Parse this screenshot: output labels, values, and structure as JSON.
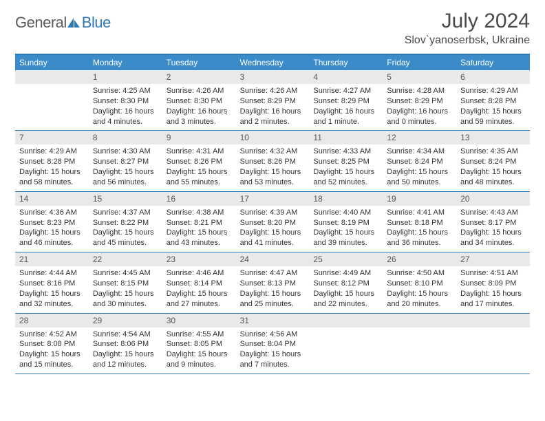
{
  "logo": {
    "text1": "General",
    "text2": "Blue",
    "icon_color": "#2e79b8"
  },
  "header": {
    "month": "July 2024",
    "location": "Slov`yanoserbsk, Ukraine"
  },
  "colors": {
    "header_bg": "#3b8bc9",
    "border": "#2e79b8",
    "daynum_bg": "#e9e9e9",
    "text": "#333333"
  },
  "layout": {
    "cols": 7,
    "rows": 5
  },
  "weekdays": [
    "Sunday",
    "Monday",
    "Tuesday",
    "Wednesday",
    "Thursday",
    "Friday",
    "Saturday"
  ],
  "days": [
    {
      "num": "",
      "sunrise": "",
      "sunset": "",
      "daylight": ""
    },
    {
      "num": "1",
      "sunrise": "4:25 AM",
      "sunset": "8:30 PM",
      "daylight": "16 hours and 4 minutes."
    },
    {
      "num": "2",
      "sunrise": "4:26 AM",
      "sunset": "8:30 PM",
      "daylight": "16 hours and 3 minutes."
    },
    {
      "num": "3",
      "sunrise": "4:26 AM",
      "sunset": "8:29 PM",
      "daylight": "16 hours and 2 minutes."
    },
    {
      "num": "4",
      "sunrise": "4:27 AM",
      "sunset": "8:29 PM",
      "daylight": "16 hours and 1 minute."
    },
    {
      "num": "5",
      "sunrise": "4:28 AM",
      "sunset": "8:29 PM",
      "daylight": "16 hours and 0 minutes."
    },
    {
      "num": "6",
      "sunrise": "4:29 AM",
      "sunset": "8:28 PM",
      "daylight": "15 hours and 59 minutes."
    },
    {
      "num": "7",
      "sunrise": "4:29 AM",
      "sunset": "8:28 PM",
      "daylight": "15 hours and 58 minutes."
    },
    {
      "num": "8",
      "sunrise": "4:30 AM",
      "sunset": "8:27 PM",
      "daylight": "15 hours and 56 minutes."
    },
    {
      "num": "9",
      "sunrise": "4:31 AM",
      "sunset": "8:26 PM",
      "daylight": "15 hours and 55 minutes."
    },
    {
      "num": "10",
      "sunrise": "4:32 AM",
      "sunset": "8:26 PM",
      "daylight": "15 hours and 53 minutes."
    },
    {
      "num": "11",
      "sunrise": "4:33 AM",
      "sunset": "8:25 PM",
      "daylight": "15 hours and 52 minutes."
    },
    {
      "num": "12",
      "sunrise": "4:34 AM",
      "sunset": "8:24 PM",
      "daylight": "15 hours and 50 minutes."
    },
    {
      "num": "13",
      "sunrise": "4:35 AM",
      "sunset": "8:24 PM",
      "daylight": "15 hours and 48 minutes."
    },
    {
      "num": "14",
      "sunrise": "4:36 AM",
      "sunset": "8:23 PM",
      "daylight": "15 hours and 46 minutes."
    },
    {
      "num": "15",
      "sunrise": "4:37 AM",
      "sunset": "8:22 PM",
      "daylight": "15 hours and 45 minutes."
    },
    {
      "num": "16",
      "sunrise": "4:38 AM",
      "sunset": "8:21 PM",
      "daylight": "15 hours and 43 minutes."
    },
    {
      "num": "17",
      "sunrise": "4:39 AM",
      "sunset": "8:20 PM",
      "daylight": "15 hours and 41 minutes."
    },
    {
      "num": "18",
      "sunrise": "4:40 AM",
      "sunset": "8:19 PM",
      "daylight": "15 hours and 39 minutes."
    },
    {
      "num": "19",
      "sunrise": "4:41 AM",
      "sunset": "8:18 PM",
      "daylight": "15 hours and 36 minutes."
    },
    {
      "num": "20",
      "sunrise": "4:43 AM",
      "sunset": "8:17 PM",
      "daylight": "15 hours and 34 minutes."
    },
    {
      "num": "21",
      "sunrise": "4:44 AM",
      "sunset": "8:16 PM",
      "daylight": "15 hours and 32 minutes."
    },
    {
      "num": "22",
      "sunrise": "4:45 AM",
      "sunset": "8:15 PM",
      "daylight": "15 hours and 30 minutes."
    },
    {
      "num": "23",
      "sunrise": "4:46 AM",
      "sunset": "8:14 PM",
      "daylight": "15 hours and 27 minutes."
    },
    {
      "num": "24",
      "sunrise": "4:47 AM",
      "sunset": "8:13 PM",
      "daylight": "15 hours and 25 minutes."
    },
    {
      "num": "25",
      "sunrise": "4:49 AM",
      "sunset": "8:12 PM",
      "daylight": "15 hours and 22 minutes."
    },
    {
      "num": "26",
      "sunrise": "4:50 AM",
      "sunset": "8:10 PM",
      "daylight": "15 hours and 20 minutes."
    },
    {
      "num": "27",
      "sunrise": "4:51 AM",
      "sunset": "8:09 PM",
      "daylight": "15 hours and 17 minutes."
    },
    {
      "num": "28",
      "sunrise": "4:52 AM",
      "sunset": "8:08 PM",
      "daylight": "15 hours and 15 minutes."
    },
    {
      "num": "29",
      "sunrise": "4:54 AM",
      "sunset": "8:06 PM",
      "daylight": "15 hours and 12 minutes."
    },
    {
      "num": "30",
      "sunrise": "4:55 AM",
      "sunset": "8:05 PM",
      "daylight": "15 hours and 9 minutes."
    },
    {
      "num": "31",
      "sunrise": "4:56 AM",
      "sunset": "8:04 PM",
      "daylight": "15 hours and 7 minutes."
    },
    {
      "num": "",
      "sunrise": "",
      "sunset": "",
      "daylight": ""
    },
    {
      "num": "",
      "sunrise": "",
      "sunset": "",
      "daylight": ""
    },
    {
      "num": "",
      "sunrise": "",
      "sunset": "",
      "daylight": ""
    }
  ],
  "labels": {
    "sunrise": "Sunrise:",
    "sunset": "Sunset:",
    "daylight": "Daylight:"
  }
}
